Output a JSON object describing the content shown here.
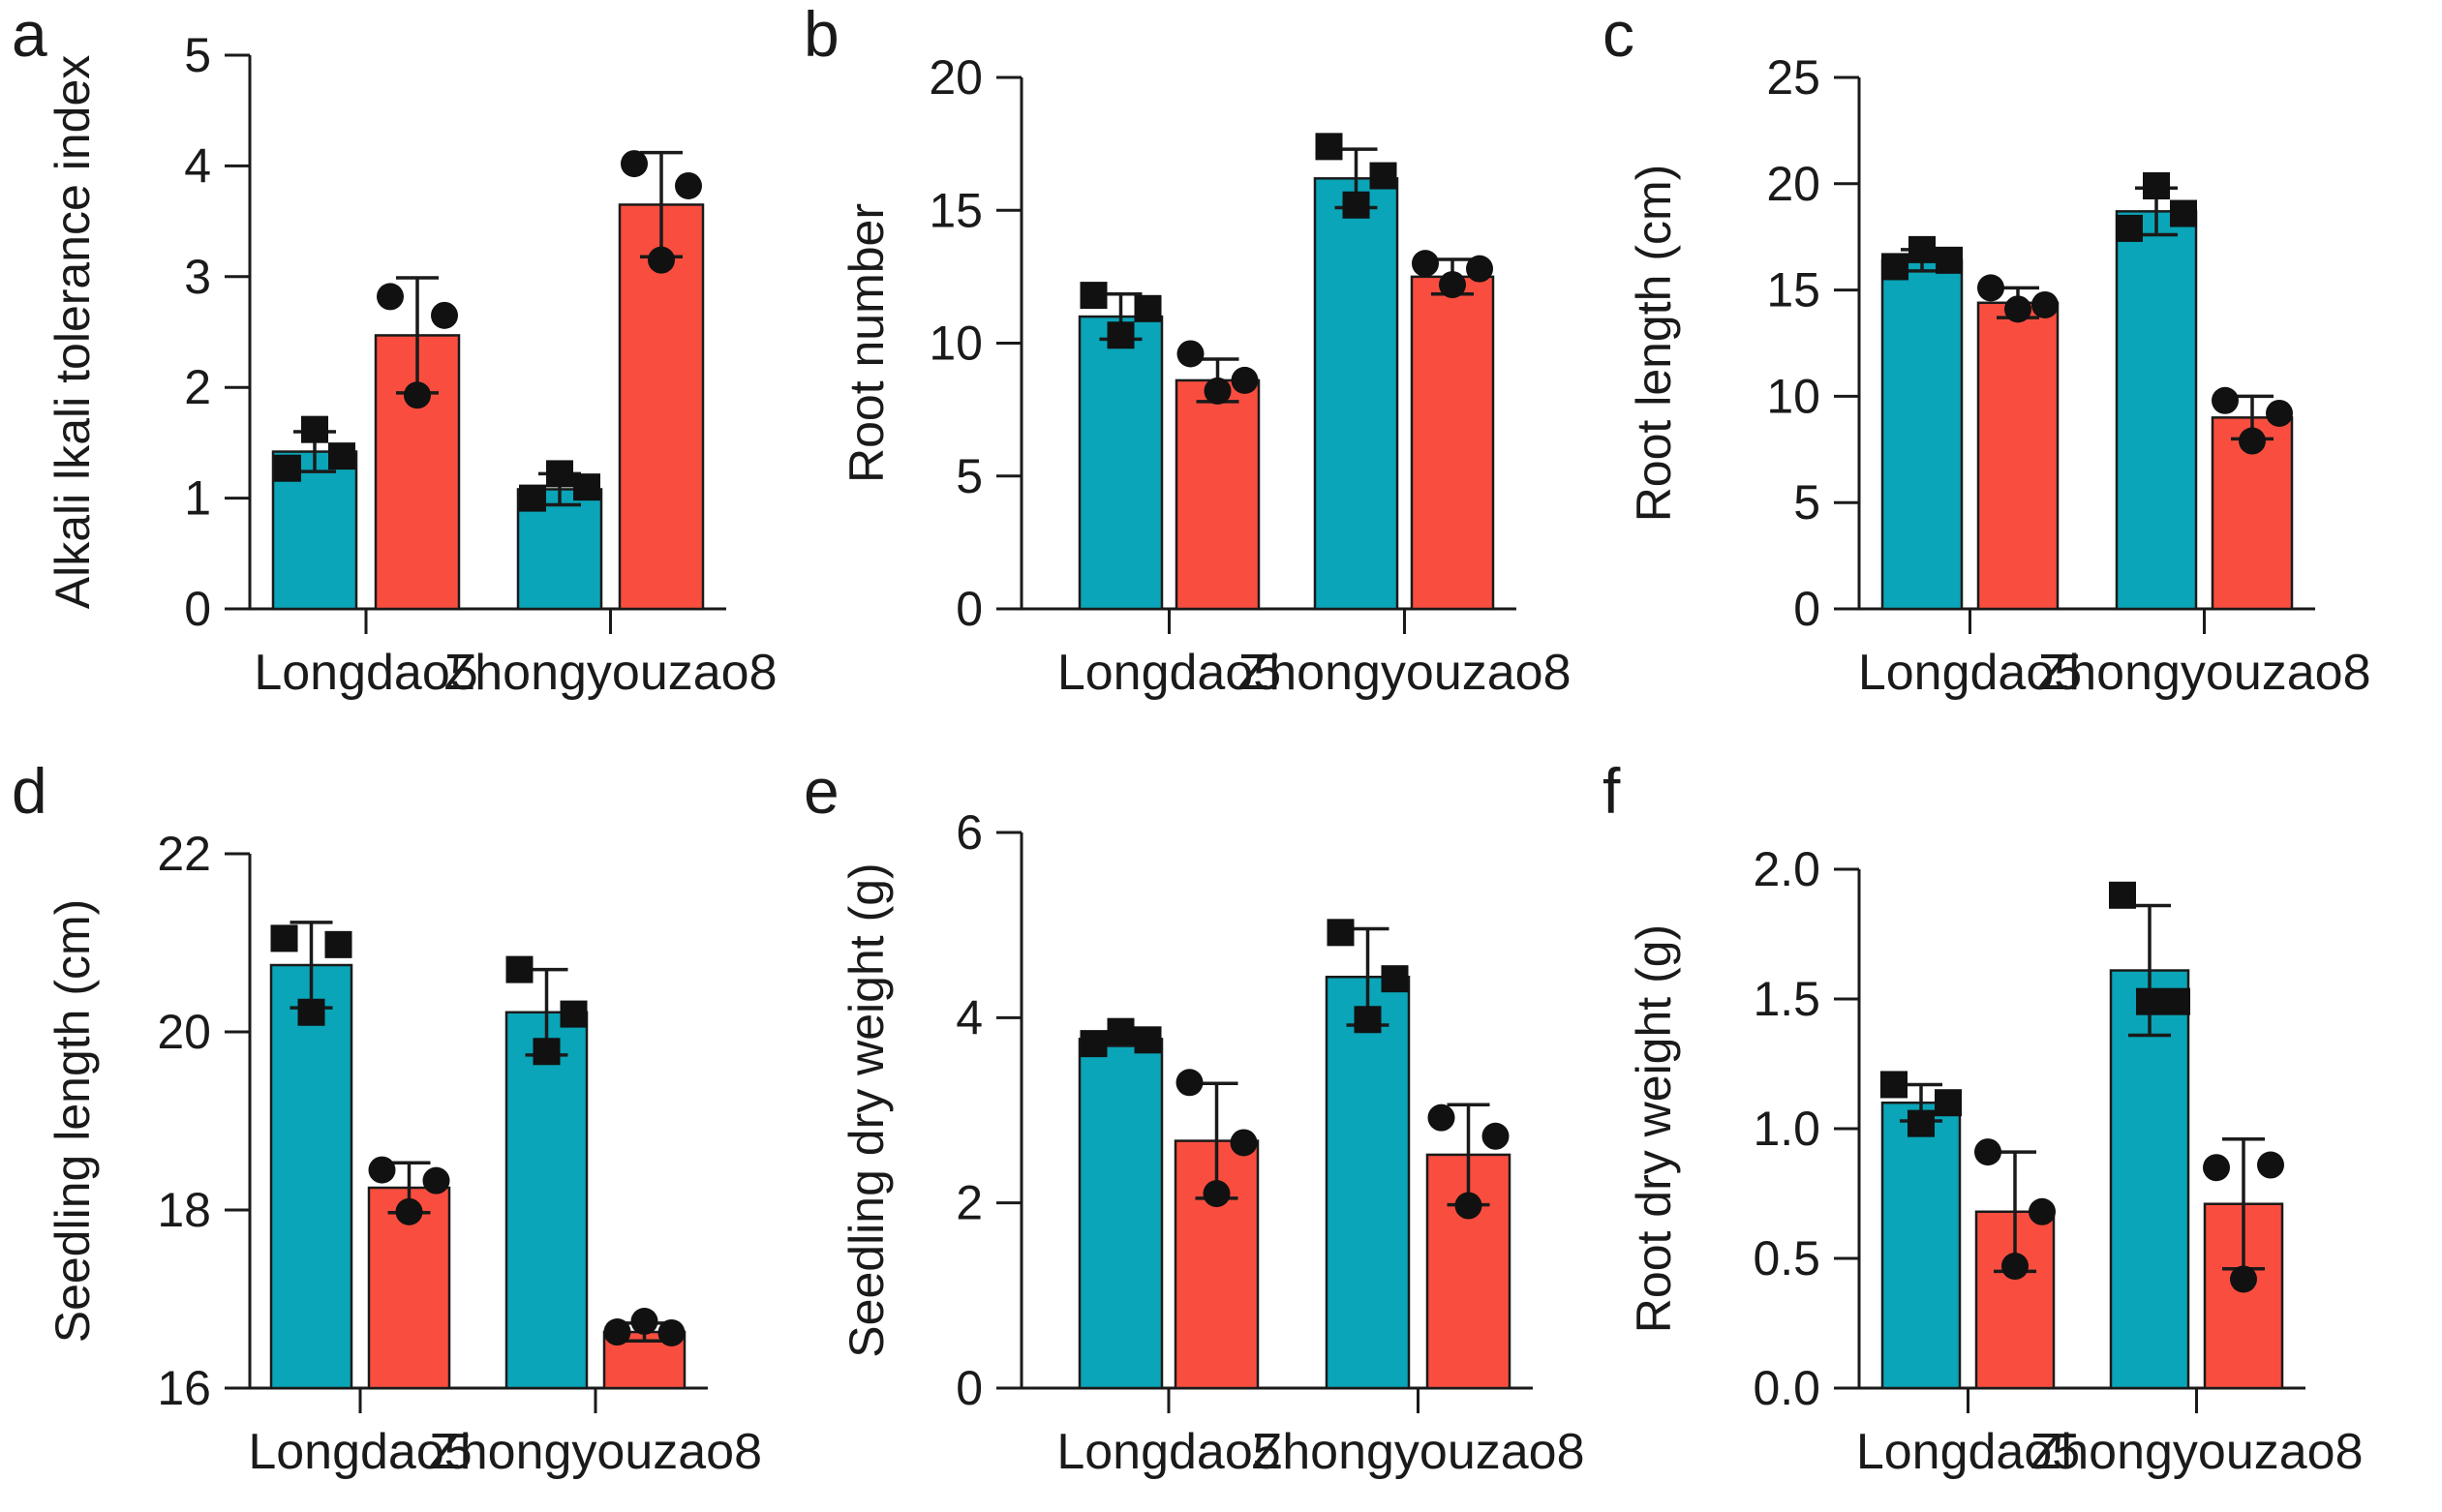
{
  "colors": {
    "control": "#0aa5b8",
    "treatment": "#f94e3f",
    "ink": "#1a1a1a"
  },
  "chart_data": [
    {
      "panel": "a",
      "type": "bar",
      "ylabel": "Alkali lkali tolerance index",
      "categories": [
        "Longdao5",
        "Zhongyouzao8"
      ],
      "ylim": [
        0,
        5
      ],
      "yticks": [
        0,
        1,
        2,
        3,
        4,
        5
      ],
      "ytick_labels": [
        "0",
        "1",
        "2",
        "3",
        "4",
        "5"
      ],
      "series": [
        {
          "name": "blue",
          "values": [
            1.42,
            1.08
          ],
          "errors": [
            0.18,
            0.14
          ],
          "points": [
            [
              1.27,
              1.62,
              1.38
            ],
            [
              1.0,
              1.22,
              1.1
            ]
          ],
          "marker": "square"
        },
        {
          "name": "red",
          "values": [
            2.47,
            3.65
          ],
          "errors": [
            0.52,
            0.47
          ],
          "points": [
            [
              2.82,
              1.93,
              2.65
            ],
            [
              4.02,
              3.15,
              3.82
            ]
          ],
          "marker": "circle"
        }
      ]
    },
    {
      "panel": "b",
      "type": "bar",
      "ylabel": "Root number",
      "categories": [
        "Longdao5",
        "Zhongyouzao8"
      ],
      "ylim": [
        0,
        20
      ],
      "yticks": [
        0,
        5,
        10,
        15,
        20
      ],
      "ytick_labels": [
        "0",
        "5",
        "10",
        "15",
        "20"
      ],
      "series": [
        {
          "name": "blue",
          "values": [
            11.0,
            16.2
          ],
          "errors": [
            0.85,
            1.1
          ],
          "points": [
            [
              11.8,
              10.3,
              11.3
            ],
            [
              17.4,
              15.2,
              16.3
            ]
          ],
          "marker": "square"
        },
        {
          "name": "red",
          "values": [
            8.6,
            12.5
          ],
          "errors": [
            0.8,
            0.65
          ],
          "points": [
            [
              9.6,
              8.2,
              8.6
            ],
            [
              13.0,
              12.2,
              12.8
            ]
          ],
          "marker": "circle"
        }
      ]
    },
    {
      "panel": "c",
      "type": "bar",
      "ylabel": "Root length (cm)",
      "categories": [
        "Longdao5",
        "Zhongyouzao8"
      ],
      "ylim": [
        0,
        25
      ],
      "yticks": [
        0,
        5,
        10,
        15,
        20,
        25
      ],
      "ytick_labels": [
        "0",
        "5",
        "10",
        "15",
        "20",
        "25"
      ],
      "series": [
        {
          "name": "blue",
          "values": [
            16.4,
            18.7
          ],
          "errors": [
            0.5,
            1.1
          ],
          "points": [
            [
              16.1,
              16.9,
              16.4
            ],
            [
              17.9,
              19.9,
              18.6
            ]
          ],
          "marker": "square"
        },
        {
          "name": "red",
          "values": [
            14.4,
            9.0
          ],
          "errors": [
            0.7,
            1.0
          ],
          "points": [
            [
              15.1,
              14.1,
              14.3
            ],
            [
              9.8,
              7.9,
              9.2
            ]
          ],
          "marker": "circle"
        }
      ]
    },
    {
      "panel": "d",
      "type": "bar",
      "ylabel": "Seedling length (cm)",
      "categories": [
        "Longdao5",
        "Zhongyouzao8"
      ],
      "ylim": [
        16,
        22
      ],
      "yticks": [
        16,
        18,
        20,
        22
      ],
      "ytick_labels": [
        "16",
        "18",
        "20",
        "22"
      ],
      "series": [
        {
          "name": "blue",
          "values": [
            20.75,
            20.22
          ],
          "errors": [
            0.48,
            0.48
          ],
          "points": [
            [
              21.05,
              20.22,
              20.98
            ],
            [
              20.7,
              19.78,
              20.2
            ]
          ],
          "marker": "square"
        },
        {
          "name": "red",
          "values": [
            18.25,
            16.63
          ],
          "errors": [
            0.28,
            0.1
          ],
          "points": [
            [
              18.45,
              17.98,
              18.33
            ],
            [
              16.63,
              16.75,
              16.62
            ]
          ],
          "marker": "circle"
        }
      ]
    },
    {
      "panel": "e",
      "type": "bar",
      "ylabel": "Seedling dry weight (g)",
      "categories": [
        "Longdao5",
        "Zhongyouzao8"
      ],
      "ylim": [
        0,
        6
      ],
      "yticks": [
        0,
        2,
        4,
        6
      ],
      "ytick_labels": [
        "0",
        "2",
        "4",
        "6"
      ],
      "series": [
        {
          "name": "blue",
          "values": [
            3.77,
            4.44
          ],
          "errors": [
            0.07,
            0.52
          ],
          "points": [
            [
              3.72,
              3.85,
              3.76
            ],
            [
              4.92,
              3.98,
              4.42
            ]
          ],
          "marker": "square"
        },
        {
          "name": "red",
          "values": [
            2.67,
            2.52
          ],
          "errors": [
            0.62,
            0.54
          ],
          "points": [
            [
              3.3,
              2.1,
              2.65
            ],
            [
              2.92,
              1.97,
              2.72
            ]
          ],
          "marker": "circle"
        }
      ]
    },
    {
      "panel": "f",
      "type": "bar",
      "ylabel": "Root dry weight (g)",
      "categories": [
        "Longdao5",
        "Zhongyouzao8"
      ],
      "ylim": [
        0,
        2
      ],
      "yticks": [
        0,
        0.5,
        1,
        1.5,
        2
      ],
      "ytick_labels": [
        "0.0",
        "0.5",
        "1.0",
        "1.5",
        "2.0"
      ],
      "series": [
        {
          "name": "blue",
          "values": [
            1.1,
            1.61
          ],
          "errors": [
            0.07,
            0.25
          ],
          "points": [
            [
              1.17,
              1.02,
              1.1
            ],
            [
              1.9,
              1.49,
              1.49
            ]
          ],
          "marker": "square"
        },
        {
          "name": "red",
          "values": [
            0.68,
            0.71
          ],
          "errors": [
            0.23,
            0.25
          ],
          "points": [
            [
              0.91,
              0.47,
              0.68
            ],
            [
              0.85,
              0.42,
              0.86
            ]
          ],
          "marker": "circle"
        }
      ]
    }
  ]
}
